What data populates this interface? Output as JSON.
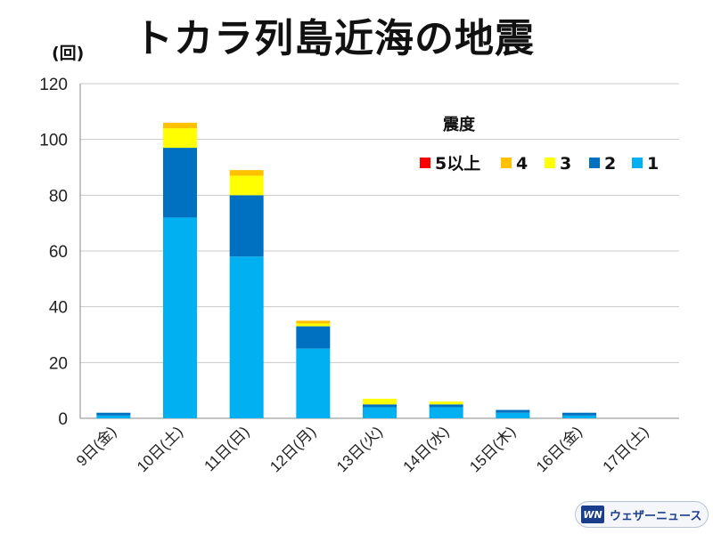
{
  "title": "トカラ列島近海の地震",
  "unit_label": "(回)",
  "brand": {
    "logo_text": "WN",
    "name": "ウェザーニュース"
  },
  "chart_data": {
    "type": "bar",
    "stacked": true,
    "title": "トカラ列島近海の地震",
    "ylabel": "(回)",
    "xlabel": "",
    "ylim": [
      0,
      120
    ],
    "yticks": [
      0,
      20,
      40,
      60,
      80,
      100,
      120
    ],
    "grid": true,
    "legend_title": "震度",
    "legend_position": "top-right",
    "categories": [
      "9日(金)",
      "10日(土)",
      "11日(日)",
      "12日(月)",
      "13日(火)",
      "14日(水)",
      "15日(木)",
      "16日(金)",
      "17日(土)"
    ],
    "series": [
      {
        "name": "1",
        "color": "#00b0f0",
        "values": [
          1,
          72,
          58,
          25,
          4,
          4,
          2,
          1,
          0
        ]
      },
      {
        "name": "2",
        "color": "#0070c0",
        "values": [
          1,
          25,
          22,
          8,
          1,
          1,
          1,
          1,
          0
        ]
      },
      {
        "name": "3",
        "color": "#ffff00",
        "values": [
          0,
          7,
          7,
          1,
          2,
          1,
          0,
          0,
          0
        ]
      },
      {
        "name": "4",
        "color": "#ffc000",
        "values": [
          0,
          2,
          2,
          1,
          0,
          0,
          0,
          0,
          0
        ]
      },
      {
        "name": "5以上",
        "color": "#ff0000",
        "values": [
          0,
          0,
          0,
          0,
          0,
          0,
          0,
          0,
          0
        ]
      }
    ],
    "legend_order": [
      "5以上",
      "4",
      "3",
      "2",
      "1"
    ]
  }
}
